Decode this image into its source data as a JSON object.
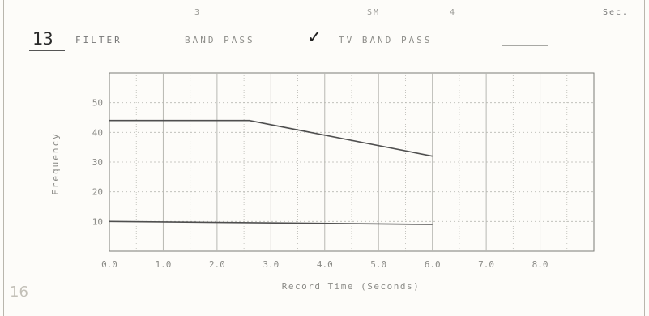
{
  "header": {
    "top_fields": [
      "3",
      "SM",
      "4",
      "Sec."
    ],
    "filter_number": "13",
    "filter_label": "FILTER",
    "option_band_pass": "BAND PASS",
    "check_mark": "✓",
    "option_tv_band_pass": "TV BAND PASS",
    "corner_mark": "16"
  },
  "chart_data": {
    "type": "line",
    "title": "",
    "xlabel": "Record Time (Seconds)",
    "ylabel": "Frequency",
    "xlim": [
      0,
      9.0
    ],
    "ylim": [
      0,
      60
    ],
    "x_tick_labels": [
      "0.0",
      "1.0",
      "2.0",
      "3.0",
      "4.0",
      "5.0",
      "6.0",
      "7.0",
      "8.0"
    ],
    "y_tick_labels": [
      "10",
      "20",
      "30",
      "40",
      "50"
    ],
    "grid": true,
    "series": [
      {
        "x": [
          0,
          2.6,
          6.0
        ],
        "y": [
          44,
          44,
          32
        ]
      },
      {
        "x": [
          0,
          6.0
        ],
        "y": [
          10,
          9
        ]
      }
    ]
  },
  "colors": {
    "line": "#4f4f4f",
    "grid": "#b8b8b2",
    "text": "#8a8a86"
  }
}
